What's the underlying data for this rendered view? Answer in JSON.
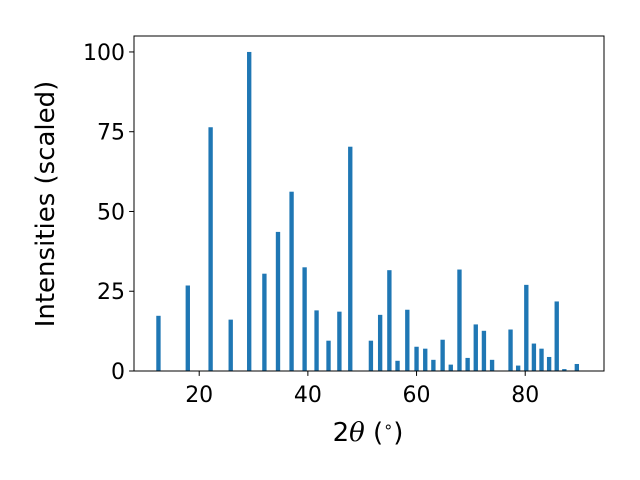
{
  "chart_data": {
    "type": "bar",
    "title": "",
    "xlabel_parts": [
      "2",
      "θ",
      " (",
      "∘",
      ")"
    ],
    "ylabel": "Intensities (scaled)",
    "xlim": [
      8.0,
      94.5
    ],
    "ylim": [
      0,
      105
    ],
    "xticks": [
      20,
      40,
      60,
      80
    ],
    "yticks": [
      0,
      25,
      50,
      75,
      100
    ],
    "xtick_labels": [
      "20",
      "40",
      "60",
      "80"
    ],
    "ytick_labels": [
      "0",
      "25",
      "50",
      "75",
      "100"
    ],
    "bar_width": 0.8,
    "bar_color": "#1f77b4",
    "grid": false,
    "x": [
      12.5,
      17.9,
      22.1,
      25.8,
      29.2,
      32.0,
      34.5,
      37.0,
      39.4,
      41.6,
      43.8,
      45.8,
      47.8,
      51.6,
      53.3,
      55.0,
      56.5,
      58.3,
      60.0,
      61.6,
      63.1,
      64.8,
      66.3,
      67.9,
      69.4,
      70.9,
      72.4,
      73.9,
      77.3,
      78.7,
      80.2,
      81.6,
      83.0,
      84.4,
      85.8,
      87.2,
      89.5
    ],
    "values": [
      17.3,
      26.8,
      76.4,
      16.1,
      100,
      30.5,
      43.6,
      56.2,
      32.5,
      19.0,
      9.5,
      18.6,
      70.3,
      9.5,
      17.6,
      31.6,
      3.2,
      19.2,
      7.6,
      7.0,
      3.5,
      9.8,
      2.0,
      31.8,
      4.1,
      14.6,
      12.6,
      3.5,
      13.0,
      1.7,
      27.0,
      8.6,
      7.0,
      4.4,
      21.8,
      0.6,
      2.2
    ]
  }
}
